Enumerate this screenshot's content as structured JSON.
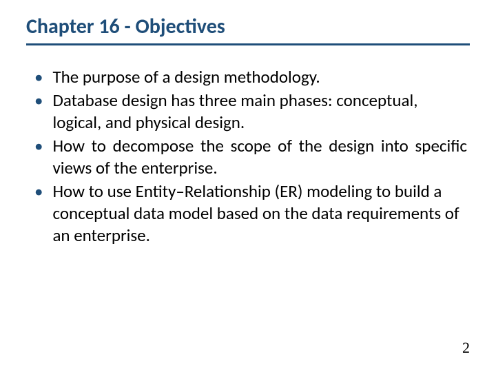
{
  "title": "Chapter 16 - Objectives",
  "colors": {
    "heading": "#1f4e79",
    "bullet_marker": "#1f4e79",
    "body_text": "#000000",
    "background": "#ffffff"
  },
  "typography": {
    "title_fontsize": 30,
    "title_weight": "bold",
    "body_fontsize": 25,
    "pagenum_fontsize": 22,
    "title_font": "Calibri",
    "body_font": "Calibri",
    "pagenum_font": "Times New Roman"
  },
  "bullets": [
    {
      "text": "The purpose of a design methodology.",
      "justify": false
    },
    {
      "text": "Database design has three main phases: conceptual, logical, and  physical design.",
      "justify": false
    },
    {
      "text": "How to decompose the scope of the design into specific views of the enterprise.",
      "justify": true
    },
    {
      "text": "How to use Entity–Relationship (ER) modeling to build a conceptual data model based on the data requirements of an enterprise.",
      "justify": false
    }
  ],
  "page_number": "2"
}
